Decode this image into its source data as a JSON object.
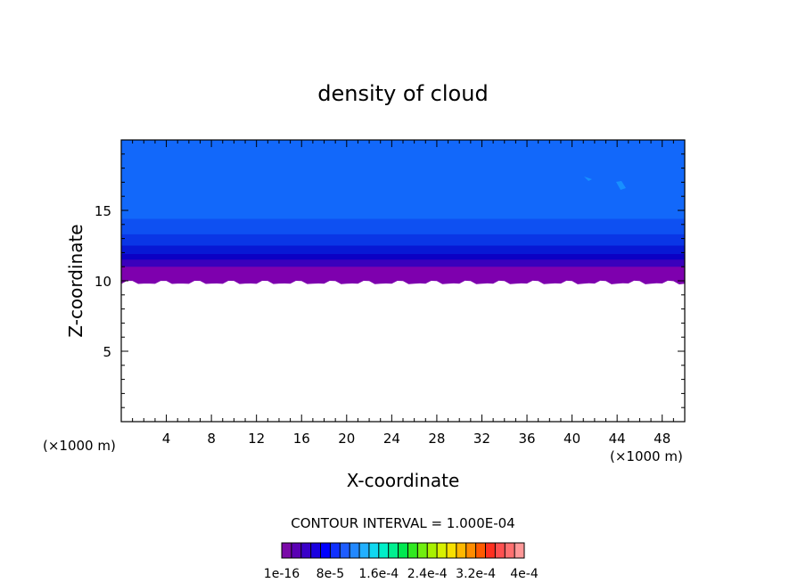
{
  "chart_data": {
    "type": "heatmap",
    "title": "density of cloud",
    "xlabel": "X-coordinate",
    "ylabel": "Z-coordinate",
    "x_unit_left": "(×1000 m)",
    "x_unit_right": "(×1000 m)",
    "xlim": [
      0,
      50
    ],
    "ylim": [
      0,
      20
    ],
    "x_ticks": [
      4,
      8,
      12,
      16,
      20,
      24,
      28,
      32,
      36,
      40,
      44,
      48
    ],
    "y_ticks": [
      5,
      10,
      15
    ],
    "grid": false,
    "contour_interval_text": "CONTOUR INTERVAL = 1.000E-04",
    "colorbar": {
      "colors": [
        "#7a0aa8",
        "#5a00b4",
        "#3a00c8",
        "#1a00e0",
        "#0000ff",
        "#1030ff",
        "#1e5cff",
        "#2288ff",
        "#22b0ff",
        "#10d8f0",
        "#00f0c8",
        "#00f090",
        "#00e850",
        "#30e820",
        "#70ee10",
        "#a8f000",
        "#d8f000",
        "#f8e000",
        "#ffb800",
        "#ff8c00",
        "#ff5a00",
        "#ff3020",
        "#ff5050",
        "#ff7070",
        "#ff9898"
      ],
      "labels": [
        "1e-16",
        "8e-5",
        "1.6e-4",
        "2.4e-4",
        "3.2e-4",
        "4e-4"
      ]
    },
    "layers": [
      {
        "level": "7e-5",
        "color": "#1268fa",
        "z_bottom": 13.9,
        "z_top": 20
      },
      {
        "level": "6e-5",
        "color": "#0e50f2",
        "z_bottom": 12.8,
        "z_top": 13.9
      },
      {
        "level": "5e-5",
        "color": "#0a36e6",
        "z_bottom": 12.0,
        "z_top": 12.8
      },
      {
        "level": "4e-5",
        "color": "#0818d4",
        "z_bottom": 11.4,
        "z_top": 12.0
      },
      {
        "level": "3e-5",
        "color": "#0c00c4",
        "z_bottom": 11.0,
        "z_top": 11.4
      },
      {
        "level": "2e-5",
        "color": "#3a00bc",
        "z_bottom": 10.5,
        "z_top": 11.0
      },
      {
        "level": "1e-16",
        "color": "#7e00ae",
        "z_bottom": 9.9,
        "z_top": 10.5
      }
    ]
  }
}
